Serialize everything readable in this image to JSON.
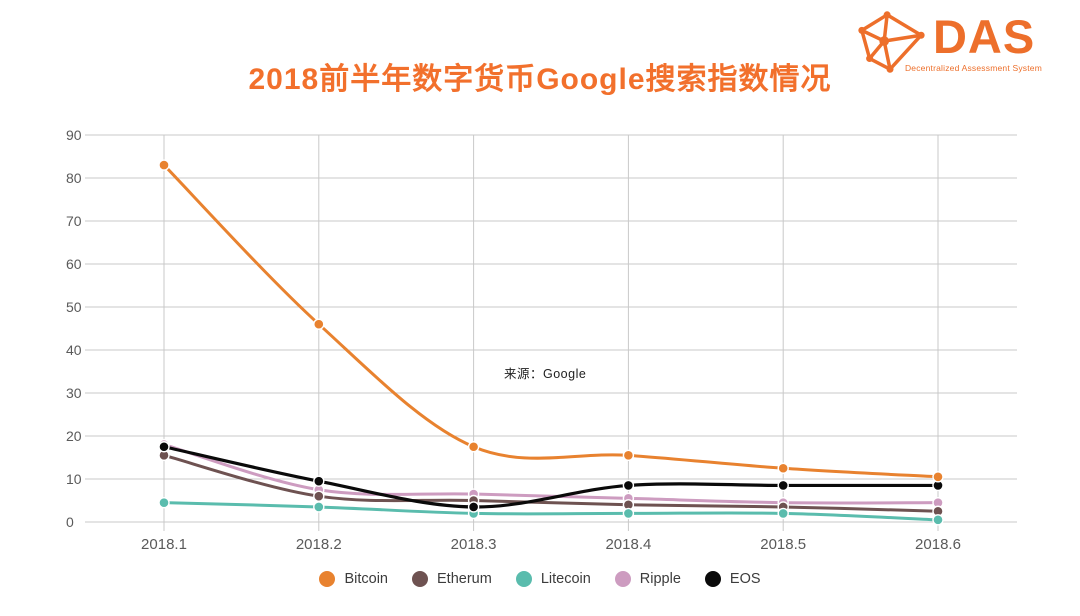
{
  "page": {
    "background": "#ffffff"
  },
  "header": {
    "title": "2018前半年数字货币Google搜索指数情况",
    "title_color": "#F2702C"
  },
  "logo": {
    "name": "DAS",
    "subtitle": "Decentralized Assessment System",
    "color": "#ED6F2B"
  },
  "chart_data": {
    "type": "line",
    "title": "2018前半年数字货币Google搜索指数情况",
    "categories": [
      "2018.1",
      "2018.2",
      "2018.3",
      "2018.4",
      "2018.5",
      "2018.6"
    ],
    "series": [
      {
        "name": "Bitcoin",
        "color": "#E8822F",
        "values": [
          83,
          46,
          17.5,
          15.5,
          12.5,
          10.5
        ]
      },
      {
        "name": "Etherum",
        "color": "#6E5251",
        "values": [
          15.5,
          6,
          5,
          4,
          3.5,
          2.5
        ]
      },
      {
        "name": "Litecoin",
        "color": "#5ABCAD",
        "values": [
          4.5,
          3.5,
          2,
          2,
          2,
          0.5
        ]
      },
      {
        "name": "Ripple",
        "color": "#CD9CC0",
        "values": [
          18,
          7.5,
          6.5,
          5.5,
          4.5,
          4.5
        ]
      },
      {
        "name": "EOS",
        "color": "#0A0A0A",
        "values": [
          17.5,
          9.5,
          3.5,
          8.5,
          8.5,
          8.5
        ]
      }
    ],
    "xlabel": "",
    "ylabel": "",
    "ylim": [
      0,
      90
    ],
    "yticks": [
      0,
      10,
      20,
      30,
      40,
      50,
      60,
      70,
      80,
      90
    ],
    "grid": true,
    "grid_color": "#C9C9C9",
    "tick_label_color": "#5A5A5A",
    "legend_position": "bottom",
    "annotation": {
      "text": "来源：Google"
    }
  }
}
